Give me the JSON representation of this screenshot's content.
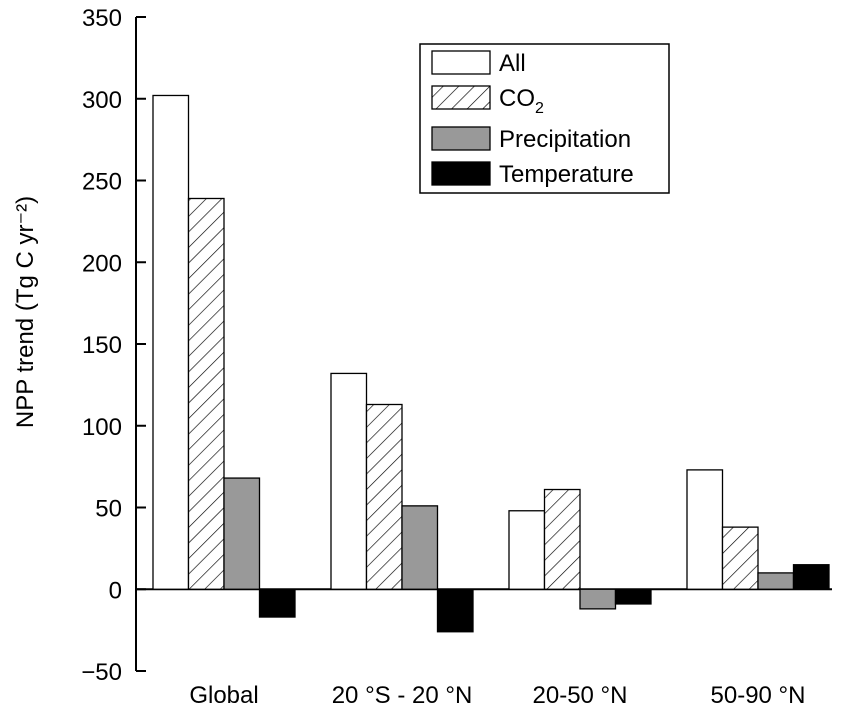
{
  "chart_data": {
    "type": "bar",
    "title": "",
    "xlabel": "",
    "ylabel": "NPP trend (Tg C yr⁻²)",
    "ylim": [
      -50,
      350
    ],
    "yticks": [
      350,
      300,
      250,
      200,
      150,
      100,
      50,
      0,
      -50
    ],
    "categories": [
      "Global",
      "20 °S - 20 °N",
      "20-50 °N",
      "50-90 °N"
    ],
    "series": [
      {
        "name": "All",
        "fill": "white",
        "values": [
          302,
          132,
          48,
          73
        ]
      },
      {
        "name": "CO2",
        "fill": "hatch",
        "values": [
          239,
          113,
          61,
          38
        ]
      },
      {
        "name": "Precipitation",
        "fill": "#999999",
        "values": [
          68,
          51,
          -12,
          10
        ]
      },
      {
        "name": "Temperature",
        "fill": "#000000",
        "values": [
          -17,
          -26,
          -9,
          15
        ]
      }
    ],
    "legend_position": "top-right",
    "grid": false
  }
}
